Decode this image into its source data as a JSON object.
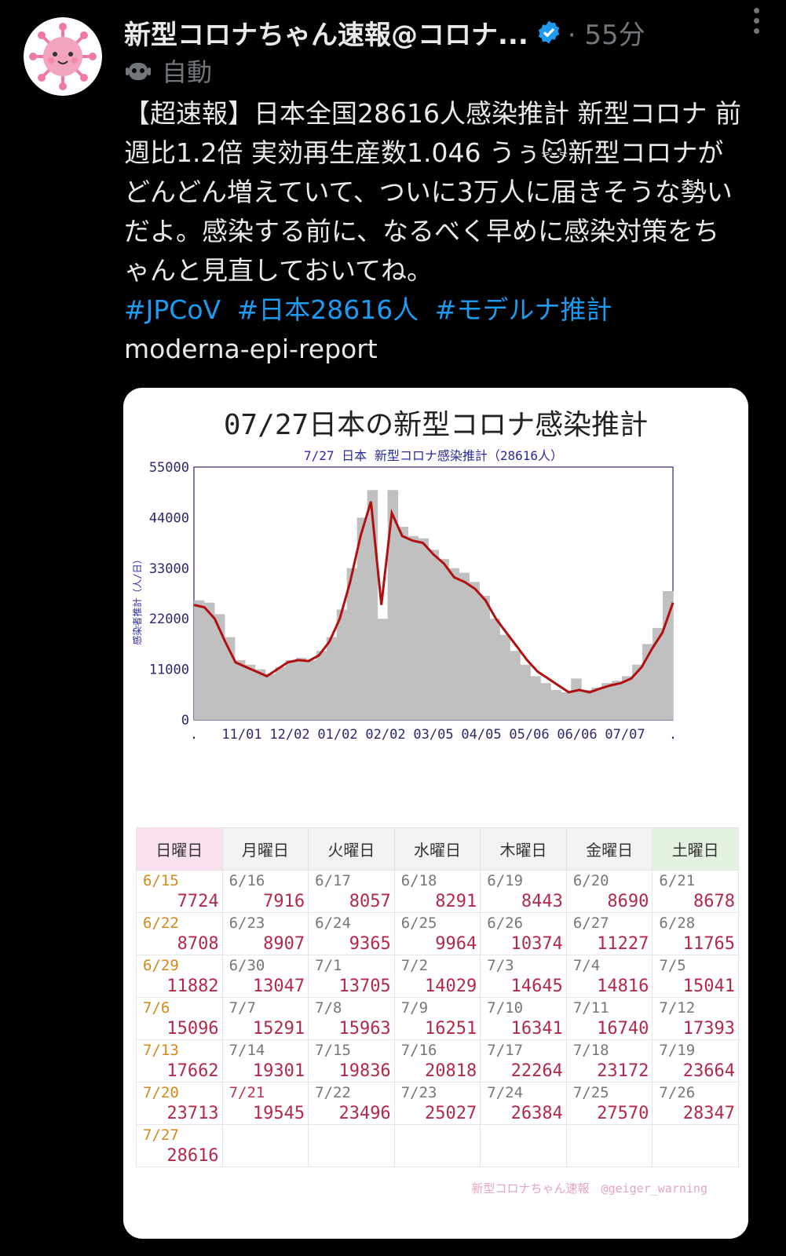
{
  "tweet": {
    "author": "新型コロナちゃん速報@コロナ...",
    "time": "· 55分",
    "auto_label": "自動",
    "text": "【超速報】日本全国28616人感染推計 新型コロナ 前週比1.2倍 実効再生産数1.046 うぅ🐱新型コロナがどんどん増えていて、ついに3万人に届きそうな勢いだよ。感染する前に、なるべく早めに感染対策をちゃんと見直しておいてね。",
    "hashtags": [
      "#JPCoV",
      "#日本28616人",
      "#モデルナ推計"
    ],
    "account_tag": "moderna-epi-report"
  },
  "card": {
    "title": "07/27日本の新型コロナ感染推計",
    "credit": "新型コロナちゃん速報　@geiger_warning"
  },
  "chart_data": {
    "type": "area",
    "title": "7/27 日本 新型コロナ感染推計（28616人）",
    "ylabel": "感染者推計（人/日）",
    "xlabel": "",
    "ylim": [
      0,
      55000
    ],
    "yticks": [
      "55000",
      "44000",
      "33000",
      "22000",
      "11000",
      "0"
    ],
    "xticks": [
      ".",
      "11/01",
      "12/02",
      "01/02",
      "02/02",
      "03/05",
      "04/05",
      "05/06",
      "06/06",
      "07/07",
      "."
    ],
    "colors": {
      "bars": "#c0c0c0",
      "line": "#b01010",
      "axis_title": "#2a2aa0"
    },
    "series": [
      {
        "values": [
          25000,
          24500,
          22000,
          17000,
          12500,
          11500,
          10500,
          9500,
          11000,
          12500,
          13000,
          12800,
          14000,
          17000,
          22000,
          30000,
          40000,
          47500,
          25000,
          45000,
          40000,
          39000,
          38500,
          36000,
          34000,
          31000,
          30000,
          28500,
          26000,
          22000,
          19000,
          16000,
          13000,
          10500,
          9000,
          7500,
          6000,
          6500,
          6000,
          6800,
          7500,
          8000,
          9000,
          11500,
          15500,
          19000,
          25500
        ]
      },
      {
        "values": [
          26000,
          25500,
          23000,
          18000,
          13000,
          12000,
          11000,
          10000,
          11500,
          13000,
          13500,
          13000,
          15000,
          18000,
          24000,
          33000,
          44000,
          50000,
          22000,
          50000,
          42000,
          40000,
          39500,
          37000,
          35000,
          33000,
          32000,
          30000,
          27000,
          22000,
          18500,
          15000,
          12000,
          9500,
          8000,
          6500,
          6000,
          9000,
          6500,
          7000,
          8000,
          8500,
          9500,
          12000,
          16500,
          20000,
          28000
        ]
      }
    ]
  },
  "calendar": {
    "headers": [
      "日曜日",
      "月曜日",
      "火曜日",
      "水曜日",
      "木曜日",
      "金曜日",
      "土曜日"
    ],
    "weeks": [
      [
        {
          "d": "6/15",
          "v": "7724",
          "c": "hol"
        },
        {
          "d": "6/16",
          "v": "7916"
        },
        {
          "d": "6/17",
          "v": "8057"
        },
        {
          "d": "6/18",
          "v": "8291"
        },
        {
          "d": "6/19",
          "v": "8443"
        },
        {
          "d": "6/20",
          "v": "8690"
        },
        {
          "d": "6/21",
          "v": "8678"
        }
      ],
      [
        {
          "d": "6/22",
          "v": "8708",
          "c": "hol"
        },
        {
          "d": "6/23",
          "v": "8907"
        },
        {
          "d": "6/24",
          "v": "9365"
        },
        {
          "d": "6/25",
          "v": "9964"
        },
        {
          "d": "6/26",
          "v": "10374"
        },
        {
          "d": "6/27",
          "v": "11227"
        },
        {
          "d": "6/28",
          "v": "11765"
        }
      ],
      [
        {
          "d": "6/29",
          "v": "11882",
          "c": "hol"
        },
        {
          "d": "6/30",
          "v": "13047"
        },
        {
          "d": "7/1",
          "v": "13705"
        },
        {
          "d": "7/2",
          "v": "14029"
        },
        {
          "d": "7/3",
          "v": "14645"
        },
        {
          "d": "7/4",
          "v": "14816"
        },
        {
          "d": "7/5",
          "v": "15041"
        }
      ],
      [
        {
          "d": "7/6",
          "v": "15096",
          "c": "hol"
        },
        {
          "d": "7/7",
          "v": "15291"
        },
        {
          "d": "7/8",
          "v": "15963"
        },
        {
          "d": "7/9",
          "v": "16251"
        },
        {
          "d": "7/10",
          "v": "16341"
        },
        {
          "d": "7/11",
          "v": "16740"
        },
        {
          "d": "7/12",
          "v": "17393"
        }
      ],
      [
        {
          "d": "7/13",
          "v": "17662",
          "c": "hol"
        },
        {
          "d": "7/14",
          "v": "19301"
        },
        {
          "d": "7/15",
          "v": "19836"
        },
        {
          "d": "7/16",
          "v": "20818"
        },
        {
          "d": "7/17",
          "v": "22264"
        },
        {
          "d": "7/18",
          "v": "23172"
        },
        {
          "d": "7/19",
          "v": "23664"
        }
      ],
      [
        {
          "d": "7/20",
          "v": "23713",
          "c": "hol"
        },
        {
          "d": "7/21",
          "v": "19545",
          "c": "red"
        },
        {
          "d": "7/22",
          "v": "23496"
        },
        {
          "d": "7/23",
          "v": "25027"
        },
        {
          "d": "7/24",
          "v": "26384"
        },
        {
          "d": "7/25",
          "v": "27570"
        },
        {
          "d": "7/26",
          "v": "28347"
        }
      ],
      [
        {
          "d": "7/27",
          "v": "28616",
          "c": "hol"
        },
        {
          "d": "",
          "v": ""
        },
        {
          "d": "",
          "v": ""
        },
        {
          "d": "",
          "v": ""
        },
        {
          "d": "",
          "v": ""
        },
        {
          "d": "",
          "v": ""
        },
        {
          "d": "",
          "v": ""
        }
      ]
    ]
  }
}
